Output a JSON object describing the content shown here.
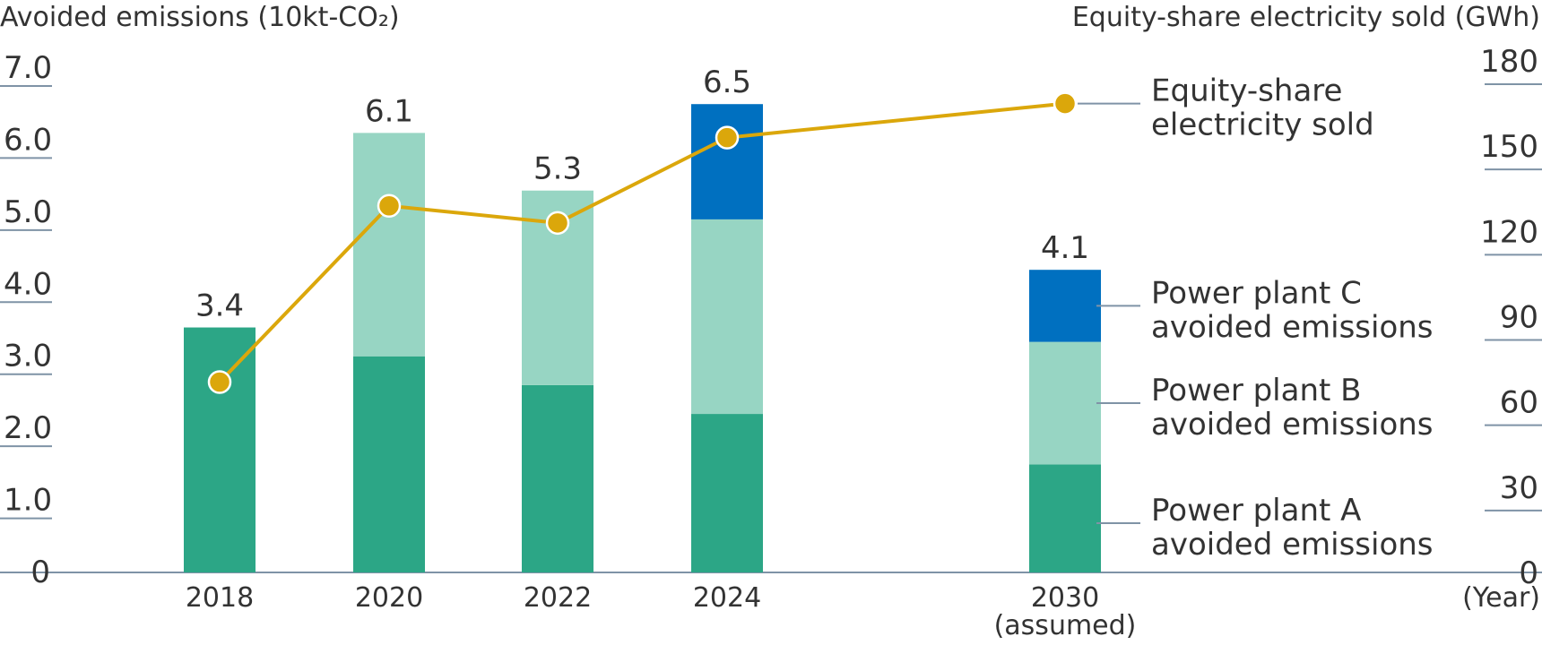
{
  "chart_data": {
    "type": "bar",
    "y_left_label": "Avoided emissions (10kt-CO₂)",
    "y_right_label": "Equity-share electricity sold (GWh)",
    "x_unit_label": "(Year)",
    "categories": [
      "2018",
      "2020",
      "2022",
      "2024",
      "2030"
    ],
    "category_sublabels": [
      "",
      "",
      "",
      "",
      "(assumed)"
    ],
    "y_left_ticks": [
      "0",
      "1.0",
      "2.0",
      "3.0",
      "4.0",
      "5.0",
      "6.0",
      "7.0"
    ],
    "y_left_range": [
      0,
      7
    ],
    "y_right_ticks": [
      "0",
      "30",
      "60",
      "90",
      "120",
      "150",
      "180"
    ],
    "y_right_range": [
      0,
      180
    ],
    "totals": [
      "3.4",
      "6.1",
      "5.3",
      "6.5",
      "4.1"
    ],
    "series": [
      {
        "name": "Power plant A avoided emissions",
        "legend_lines": [
          "Power plant A",
          "avoided emissions"
        ],
        "values": [
          3.4,
          3.0,
          2.6,
          2.2,
          1.5
        ],
        "color": "#2ca686"
      },
      {
        "name": "Power plant B avoided emissions",
        "legend_lines": [
          "Power plant B",
          "avoided emissions"
        ],
        "values": [
          0,
          3.1,
          2.7,
          2.7,
          1.7
        ],
        "color": "#97d5c3"
      },
      {
        "name": "Power plant C avoided emissions",
        "legend_lines": [
          "Power plant C",
          "avoided emissions"
        ],
        "values": [
          0,
          0,
          0,
          1.6,
          1.0
        ],
        "color": "#0070c0"
      }
    ],
    "line_series": {
      "name": "Equity-share electricity sold",
      "legend_lines": [
        "Equity-share",
        "electricity sold"
      ],
      "axis": "right",
      "values": [
        67,
        129,
        123,
        153,
        165
      ],
      "color": "#dba70b"
    },
    "grid": false,
    "legend": "right"
  }
}
